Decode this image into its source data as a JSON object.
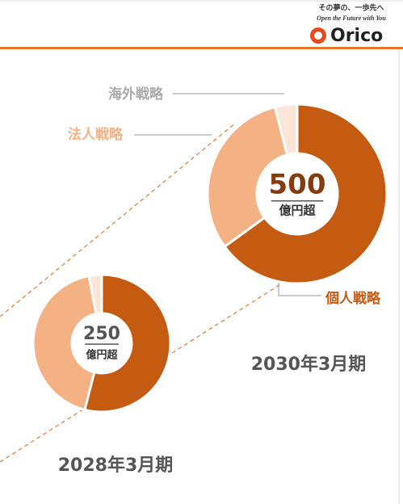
{
  "header": {
    "tagline": "その夢の、一歩先へ",
    "tagline_en": "Open the Future with You",
    "brand": "Orico"
  },
  "chart_data": [
    {
      "type": "pie",
      "donut": true,
      "title": "2030年3月期",
      "center_value": 500,
      "center_label": "億円超",
      "categories": [
        "個人戦略",
        "法人戦略",
        "海外戦略"
      ],
      "values": [
        65,
        31,
        4
      ],
      "colors": [
        "#c55a11",
        "#f4b183",
        "#fbe5d6"
      ]
    },
    {
      "type": "pie",
      "donut": true,
      "title": "2028年3月期",
      "center_value": 250,
      "center_label": "億円超",
      "categories": [
        null,
        null,
        null
      ],
      "values": [
        54,
        43,
        3
      ],
      "colors": [
        "#c55a11",
        "#f4b183",
        "#fbe5d6"
      ]
    }
  ]
}
